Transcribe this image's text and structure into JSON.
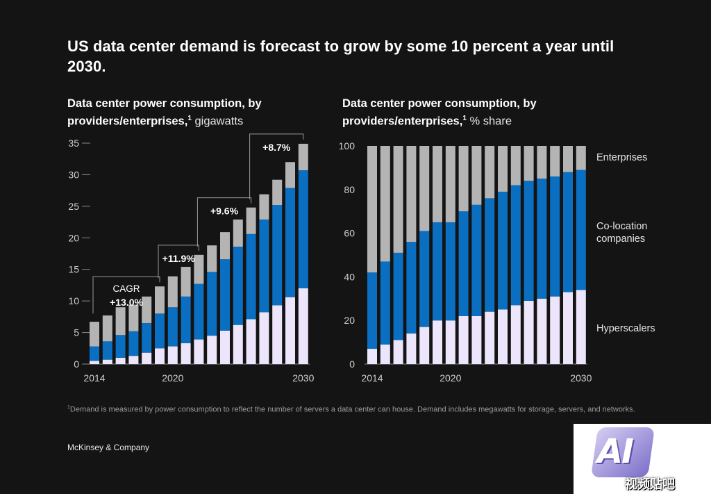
{
  "title": "US data center demand is forecast to grow by some 10 percent a year until 2030.",
  "colors": {
    "background": "#141414",
    "hyperscalers": "#ede5fb",
    "colocation": "#0b6fc1",
    "enterprises": "#b4b4b4",
    "axis_text": "#cfcfcf",
    "bracket": "#9a9a9a"
  },
  "charts": {
    "left": {
      "title_bold": "Data center power consumption, by providers/enterprises,",
      "sup": "1",
      "unit": "gigawatts"
    },
    "right": {
      "title_bold": "Data center power consumption, by providers/enterprises,",
      "sup": "1",
      "unit": "% share"
    }
  },
  "chart_data": [
    {
      "type": "bar",
      "stacked": true,
      "title": "Data center power consumption, by providers/enterprises, gigawatts",
      "ylabel": "gigawatts",
      "ylim": [
        0,
        35
      ],
      "yticks": [
        0,
        5,
        10,
        15,
        20,
        25,
        30,
        35
      ],
      "categories": [
        "2014",
        "2015",
        "2016",
        "2017",
        "2018",
        "2019",
        "2020",
        "2021",
        "2022",
        "2023",
        "2024",
        "2025",
        "2026",
        "2027",
        "2028",
        "2029",
        "2030"
      ],
      "xtick_labels": [
        {
          "year": "2014",
          "label": "2014"
        },
        {
          "year": "2020",
          "label": "2020"
        },
        {
          "year": "2030",
          "label": "2030"
        }
      ],
      "series": [
        {
          "name": "Hyperscalers",
          "values": [
            0.5,
            0.7,
            1.0,
            1.3,
            1.8,
            2.5,
            2.8,
            3.3,
            3.9,
            4.5,
            5.3,
            6.2,
            7.1,
            8.2,
            9.3,
            10.6,
            12.0
          ]
        },
        {
          "name": "Co-location companies",
          "values": [
            2.3,
            2.9,
            3.6,
            3.9,
            4.7,
            5.5,
            6.2,
            7.4,
            8.8,
            10.1,
            11.3,
            12.4,
            13.5,
            14.7,
            15.9,
            17.3,
            18.7
          ]
        },
        {
          "name": "Enterprises",
          "values": [
            3.9,
            4.1,
            4.4,
            4.2,
            4.2,
            4.3,
            4.9,
            4.7,
            4.6,
            4.2,
            4.3,
            4.3,
            4.2,
            4.0,
            4.0,
            4.1,
            4.2
          ]
        }
      ],
      "annotations": [
        {
          "label": "CAGR",
          "value": "+13.0%",
          "from": "2014",
          "to": "2019"
        },
        {
          "value": "+11.9%",
          "from": "2019",
          "to": "2022"
        },
        {
          "value": "+9.6%",
          "from": "2022",
          "to": "2026"
        },
        {
          "value": "+8.7%",
          "from": "2026",
          "to": "2030"
        }
      ]
    },
    {
      "type": "bar",
      "stacked": true,
      "title": "Data center power consumption, by providers/enterprises, % share",
      "ylabel": "% share",
      "ylim": [
        0,
        100
      ],
      "yticks": [
        0,
        20,
        40,
        60,
        80,
        100
      ],
      "categories": [
        "2014",
        "2015",
        "2016",
        "2017",
        "2018",
        "2019",
        "2020",
        "2021",
        "2022",
        "2023",
        "2024",
        "2025",
        "2026",
        "2027",
        "2028",
        "2029",
        "2030"
      ],
      "xtick_labels": [
        {
          "year": "2014",
          "label": "2014"
        },
        {
          "year": "2020",
          "label": "2020"
        },
        {
          "year": "2030",
          "label": "2030"
        }
      ],
      "series": [
        {
          "name": "Hyperscalers",
          "values": [
            7,
            9,
            11,
            14,
            17,
            20,
            20,
            22,
            22,
            24,
            25,
            27,
            29,
            30,
            31,
            33,
            34
          ]
        },
        {
          "name": "Co-location companies",
          "values": [
            35,
            38,
            40,
            42,
            44,
            45,
            45,
            48,
            51,
            52,
            54,
            55,
            55,
            55,
            55,
            55,
            55
          ]
        },
        {
          "name": "Enterprises",
          "values": [
            58,
            53,
            49,
            44,
            39,
            35,
            35,
            30,
            27,
            24,
            21,
            18,
            16,
            15,
            14,
            12,
            11
          ]
        }
      ],
      "legend": [
        {
          "name": "Enterprises",
          "label": "Enterprises"
        },
        {
          "name": "Co-location companies",
          "label": "Co-location companies"
        },
        {
          "name": "Hyperscalers",
          "label": "Hyperscalers"
        }
      ]
    }
  ],
  "footnote": {
    "sup": "1",
    "text": "Demand is measured by power consumption to reflect the number of servers a data center can house. Demand includes megawatts for storage, servers, and networks."
  },
  "brand": "McKinsey & Company",
  "watermark": {
    "logo_text": "AI",
    "caption": "视频贴吧"
  }
}
